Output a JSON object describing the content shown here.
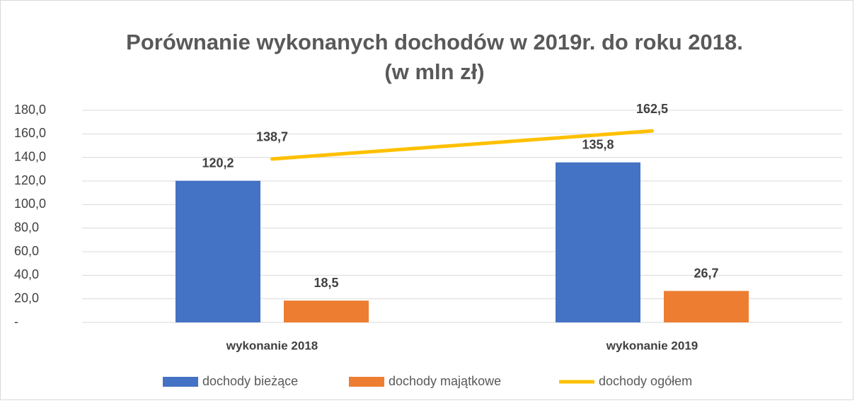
{
  "chart_data": {
    "type": "bar",
    "title": "Porównanie wykonanych dochodów w 2019r. do roku 2018.",
    "subtitle": "(w mln zł)",
    "categories": [
      "wykonanie 2018",
      "wykonanie 2019"
    ],
    "series": [
      {
        "name": "dochody bieżące",
        "type": "bar",
        "color": "#4472c4",
        "values": [
          120.2,
          135.8
        ],
        "value_labels": [
          "120,2",
          "135,8"
        ]
      },
      {
        "name": "dochody majątkowe",
        "type": "bar",
        "color": "#ed7d31",
        "values": [
          18.5,
          26.7
        ],
        "value_labels": [
          "18,5",
          "26,7"
        ]
      },
      {
        "name": "dochody ogółem",
        "type": "line",
        "color": "#ffc000",
        "values": [
          138.7,
          162.5
        ],
        "value_labels": [
          "138,7",
          "162,5"
        ]
      }
    ],
    "ylim": [
      0,
      180
    ],
    "yticks": [
      {
        "value": 0,
        "label": "-"
      },
      {
        "value": 20,
        "label": "20,0"
      },
      {
        "value": 40,
        "label": "40,0"
      },
      {
        "value": 60,
        "label": "60,0"
      },
      {
        "value": 80,
        "label": "80,0"
      },
      {
        "value": 100,
        "label": "100,0"
      },
      {
        "value": 120,
        "label": "120,0"
      },
      {
        "value": 140,
        "label": "140,0"
      },
      {
        "value": 160,
        "label": "160,0"
      },
      {
        "value": 180,
        "label": "180,0"
      }
    ],
    "grid": true,
    "legend": "bottom"
  }
}
